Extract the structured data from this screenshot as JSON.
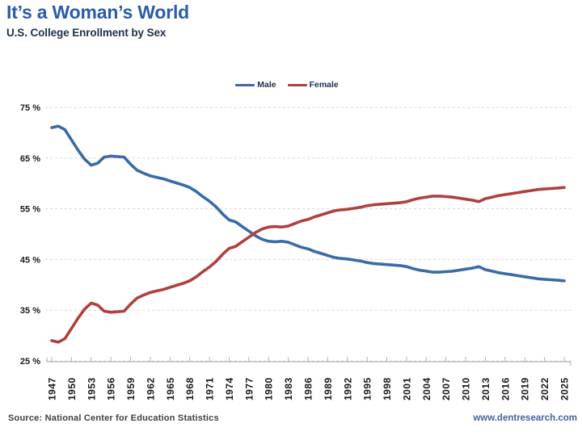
{
  "header": {
    "title": "It’s a Woman’s World",
    "subtitle": "U.S. College Enrollment by Sex"
  },
  "footer": {
    "source": "Source:  National Center for Education  Statistics",
    "website": "www.dentresearch.com"
  },
  "colors": {
    "title_blue": "#2B5CA8",
    "male_line": "#3A6BA5",
    "female_line": "#B04040",
    "gridline": "#D8D8D8",
    "axis": "#B5B5B5",
    "tick_text": "#1A1A1A",
    "website_blue": "#44639C"
  },
  "chart_data": {
    "type": "line",
    "title": "It’s a Woman’s World",
    "subtitle": "U.S. College Enrollment by Sex",
    "xlabel": "",
    "ylabel": "",
    "xlim": [
      1947,
      2025
    ],
    "ylim": [
      25,
      75
    ],
    "grid": "horizontal-dashed",
    "legend_position": "top-center",
    "y_ticks": [
      75,
      65,
      55,
      45,
      35,
      25
    ],
    "y_tick_labels": [
      "75 %",
      "65 %",
      "55 %",
      "45 %",
      "35 %",
      "25 %"
    ],
    "x_tick_labels": [
      "1947",
      "1950",
      "1953",
      "1956",
      "1959",
      "1962",
      "1965",
      "1968",
      "1971",
      "1974",
      "1977",
      "1980",
      "1983",
      "1986",
      "1989",
      "1992",
      "1995",
      "1998",
      "2001",
      "2004",
      "2007",
      "2010",
      "2013",
      "2016",
      "2019",
      "2022",
      "2025"
    ],
    "x": [
      1947,
      1948,
      1949,
      1950,
      1951,
      1952,
      1953,
      1954,
      1955,
      1956,
      1957,
      1958,
      1959,
      1960,
      1961,
      1962,
      1963,
      1964,
      1965,
      1966,
      1967,
      1968,
      1969,
      1970,
      1971,
      1972,
      1973,
      1974,
      1975,
      1976,
      1977,
      1978,
      1979,
      1980,
      1981,
      1982,
      1983,
      1984,
      1985,
      1986,
      1987,
      1988,
      1989,
      1990,
      1991,
      1992,
      1993,
      1994,
      1995,
      1996,
      1997,
      1998,
      1999,
      2000,
      2001,
      2002,
      2003,
      2004,
      2005,
      2006,
      2007,
      2008,
      2009,
      2010,
      2011,
      2012,
      2013,
      2014,
      2015,
      2016,
      2017,
      2018,
      2019,
      2020,
      2021,
      2022,
      2023,
      2024,
      2025
    ],
    "series": [
      {
        "name": "Male",
        "color": "#3A6BA5",
        "values": [
          71.0,
          71.3,
          70.6,
          68.6,
          66.6,
          64.8,
          63.6,
          64.0,
          65.2,
          65.4,
          65.3,
          65.2,
          63.8,
          62.6,
          62.0,
          61.5,
          61.2,
          60.9,
          60.5,
          60.1,
          59.7,
          59.2,
          58.4,
          57.4,
          56.5,
          55.4,
          54.0,
          52.8,
          52.4,
          51.5,
          50.6,
          49.7,
          49.0,
          48.6,
          48.5,
          48.6,
          48.4,
          47.9,
          47.4,
          47.1,
          46.6,
          46.2,
          45.8,
          45.4,
          45.2,
          45.1,
          44.9,
          44.7,
          44.4,
          44.2,
          44.1,
          44.0,
          43.9,
          43.8,
          43.6,
          43.2,
          42.9,
          42.7,
          42.5,
          42.5,
          42.6,
          42.7,
          42.9,
          43.1,
          43.3,
          43.6,
          43.0,
          42.7,
          42.4,
          42.2,
          42.0,
          41.8,
          41.6,
          41.4,
          41.2,
          41.1,
          41.0,
          40.9,
          40.8
        ]
      },
      {
        "name": "Female",
        "color": "#B04040",
        "values": [
          29.0,
          28.7,
          29.4,
          31.4,
          33.4,
          35.2,
          36.4,
          36.0,
          34.8,
          34.6,
          34.7,
          34.8,
          36.2,
          37.4,
          38.0,
          38.5,
          38.8,
          39.1,
          39.5,
          39.9,
          40.3,
          40.8,
          41.6,
          42.6,
          43.5,
          44.6,
          46.0,
          47.2,
          47.6,
          48.5,
          49.4,
          50.3,
          51.0,
          51.4,
          51.5,
          51.4,
          51.6,
          52.1,
          52.6,
          52.9,
          53.4,
          53.8,
          54.2,
          54.6,
          54.8,
          54.9,
          55.1,
          55.3,
          55.6,
          55.8,
          55.9,
          56.0,
          56.1,
          56.2,
          56.4,
          56.8,
          57.1,
          57.3,
          57.5,
          57.5,
          57.4,
          57.3,
          57.1,
          56.9,
          56.7,
          56.4,
          57.0,
          57.3,
          57.6,
          57.8,
          58.0,
          58.2,
          58.4,
          58.6,
          58.8,
          58.9,
          59.0,
          59.1,
          59.2
        ]
      }
    ]
  }
}
